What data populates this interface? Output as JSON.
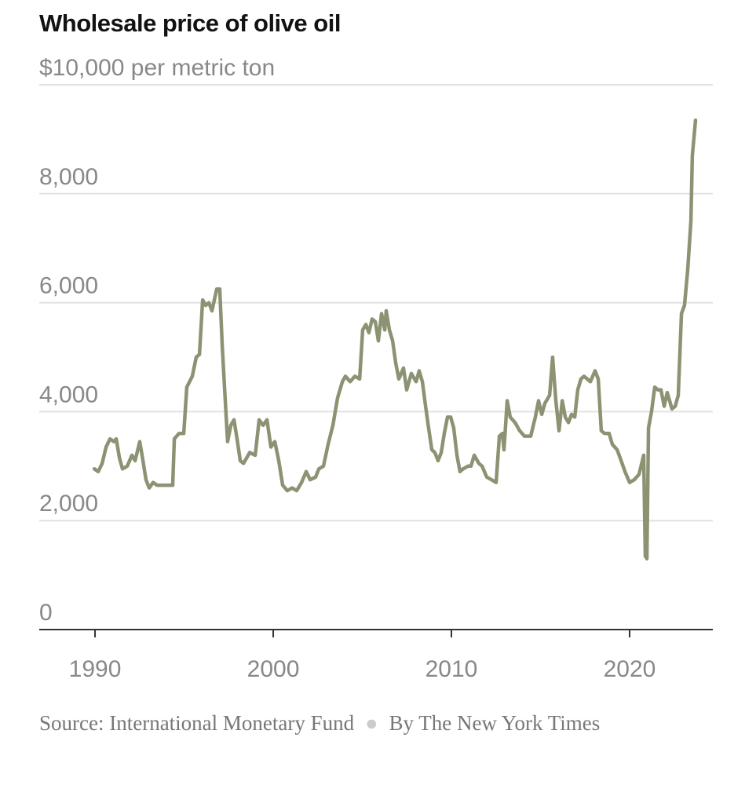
{
  "chart_data": {
    "type": "line",
    "title": "Wholesale price of olive oil",
    "source": "Source: International Monetary Fund",
    "credit": "By The New York Times",
    "color": "#8b9373",
    "grid": true,
    "xlim": [
      1986.87,
      2024.67
    ],
    "ylim": [
      0,
      10000
    ],
    "xticks": [
      1990,
      2000,
      2010,
      2020
    ],
    "yticks": [
      0,
      {
        "value": 2000,
        "label": "2,000"
      },
      {
        "value": 4000,
        "label": "4,000"
      },
      {
        "value": 6000,
        "label": "6,000"
      },
      {
        "value": 8000,
        "label": "8,000"
      },
      {
        "value": 10000,
        "label": "$10,000 per metric ton"
      }
    ],
    "x": [
      1989.96,
      1990.18,
      1990.4,
      1990.62,
      1990.84,
      1991.06,
      1991.19,
      1991.37,
      1991.54,
      1991.81,
      1992.07,
      1992.25,
      1992.51,
      1992.69,
      1992.86,
      1993.04,
      1993.26,
      1993.48,
      1993.92,
      1994.36,
      1994.45,
      1994.71,
      1994.98,
      1995.15,
      1995.46,
      1995.68,
      1995.86,
      1996.04,
      1996.21,
      1996.39,
      1996.56,
      1996.83,
      1997.0,
      1997.14,
      1997.31,
      1997.44,
      1997.62,
      1997.8,
      1997.97,
      1998.15,
      1998.33,
      1998.68,
      1998.99,
      1999.21,
      1999.43,
      1999.65,
      1999.87,
      2000.09,
      2000.31,
      2000.53,
      2000.79,
      2001.06,
      2001.32,
      2001.59,
      2001.85,
      2002.07,
      2002.38,
      2002.56,
      2002.82,
      2003.08,
      2003.35,
      2003.61,
      2003.88,
      2004.05,
      2004.32,
      2004.58,
      2004.85,
      2005.02,
      2005.2,
      2005.37,
      2005.55,
      2005.73,
      2005.9,
      2006.08,
      2006.26,
      2006.34,
      2006.52,
      2006.7,
      2006.87,
      2007.05,
      2007.31,
      2007.49,
      2007.75,
      2008.02,
      2008.19,
      2008.37,
      2008.55,
      2008.72,
      2008.9,
      2009.07,
      2009.25,
      2009.43,
      2009.6,
      2009.78,
      2009.96,
      2010.13,
      2010.31,
      2010.48,
      2010.66,
      2010.93,
      2011.1,
      2011.28,
      2011.54,
      2011.72,
      2011.98,
      2012.25,
      2012.51,
      2012.69,
      2012.86,
      2012.95,
      2013.13,
      2013.3,
      2013.57,
      2013.83,
      2014.1,
      2014.45,
      2014.71,
      2014.89,
      2015.07,
      2015.24,
      2015.51,
      2015.68,
      2015.86,
      2016.04,
      2016.22,
      2016.39,
      2016.57,
      2016.74,
      2016.92,
      2017.09,
      2017.27,
      2017.44,
      2017.62,
      2017.8,
      2018.06,
      2018.24,
      2018.41,
      2018.59,
      2018.85,
      2019.03,
      2019.3,
      2019.47,
      2019.74,
      2020.0,
      2020.26,
      2020.53,
      2020.79,
      2020.88,
      2020.97,
      2021.06,
      2021.23,
      2021.41,
      2021.59,
      2021.76,
      2021.94,
      2022.11,
      2022.38,
      2022.56,
      2022.73,
      2022.91,
      2023.08,
      2023.26,
      2023.44,
      2023.52,
      2023.7
    ],
    "values": [
      2950,
      2900,
      3050,
      3350,
      3500,
      3450,
      3500,
      3150,
      2950,
      3000,
      3200,
      3100,
      3450,
      3100,
      2750,
      2600,
      2700,
      2650,
      2650,
      2650,
      3500,
      3600,
      3600,
      4450,
      4650,
      5000,
      5050,
      6050,
      5950,
      6000,
      5850,
      6250,
      6250,
      5200,
      4200,
      3450,
      3750,
      3850,
      3500,
      3100,
      3050,
      3250,
      3200,
      3850,
      3750,
      3850,
      3350,
      3450,
      3100,
      2650,
      2550,
      2600,
      2550,
      2700,
      2900,
      2750,
      2800,
      2950,
      3000,
      3400,
      3750,
      4250,
      4550,
      4650,
      4550,
      4650,
      4600,
      5500,
      5600,
      5450,
      5700,
      5650,
      5300,
      5800,
      5500,
      5850,
      5500,
      5300,
      4900,
      4600,
      4800,
      4400,
      4700,
      4550,
      4750,
      4550,
      4100,
      3700,
      3300,
      3250,
      3100,
      3250,
      3600,
      3900,
      3900,
      3700,
      3200,
      2900,
      2950,
      3000,
      3000,
      3200,
      3050,
      3000,
      2800,
      2750,
      2700,
      3550,
      3600,
      3300,
      4200,
      3900,
      3800,
      3650,
      3550,
      3550,
      3900,
      4200,
      3950,
      4150,
      4300,
      5000,
      4200,
      3650,
      4200,
      3900,
      3800,
      3950,
      3900,
      4400,
      4600,
      4650,
      4600,
      4550,
      4750,
      4600,
      3650,
      3600,
      3600,
      3400,
      3300,
      3150,
      2900,
      2700,
      2750,
      2850,
      3200,
      1350,
      1300,
      3700,
      4000,
      4450,
      4400,
      4400,
      4100,
      4350,
      4050,
      4100,
      4300,
      5800,
      5950,
      6600,
      7500,
      8700,
      9350
    ]
  }
}
